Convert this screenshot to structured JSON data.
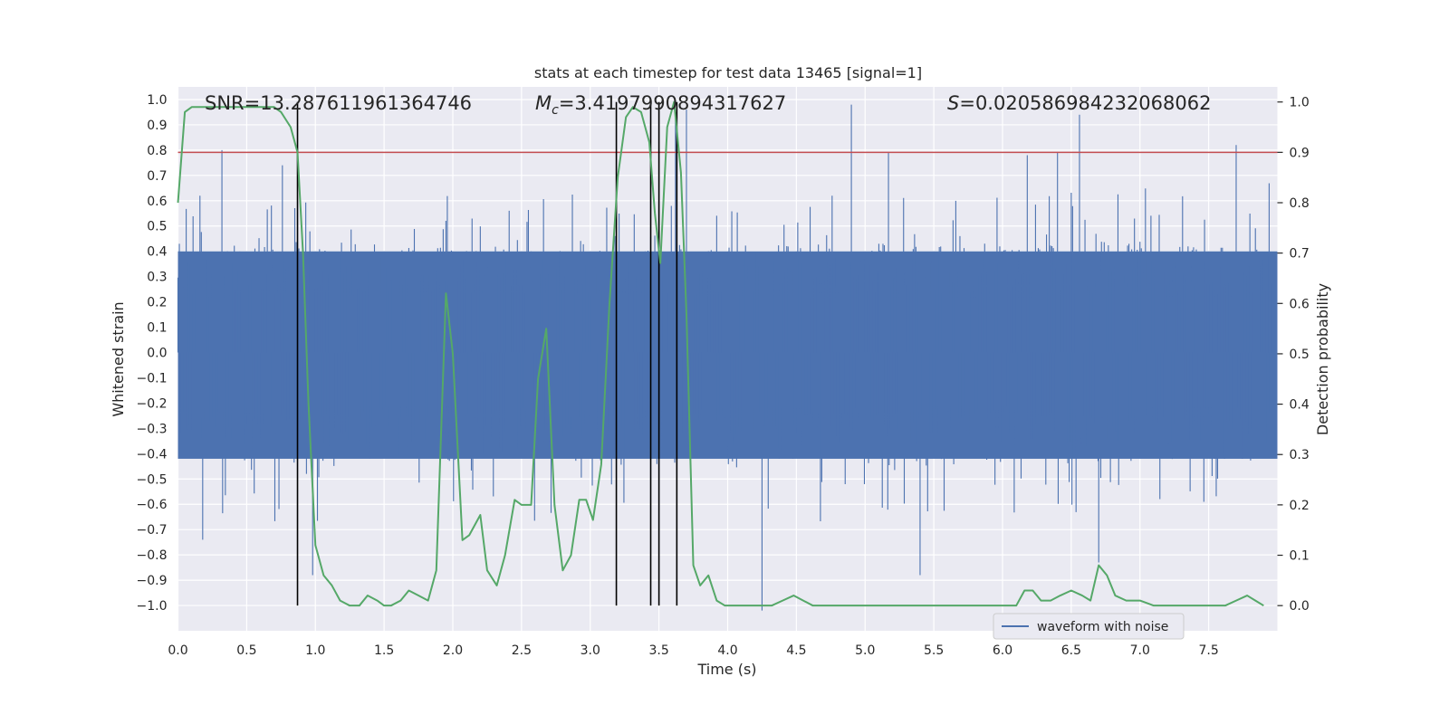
{
  "chart_data": {
    "type": "line",
    "title": "stats at each timestep for test data 13465 [signal=1]",
    "xlabel": "Time (s)",
    "ylabel_left": "Whitened strain",
    "ylabel_right": "Detection probability",
    "xlim": [
      0.0,
      8.0
    ],
    "ylim_left": [
      -1.1,
      1.05
    ],
    "ylim_right": [
      -0.05,
      1.03
    ],
    "xticks": [
      "0.0",
      "0.5",
      "1.0",
      "1.5",
      "2.0",
      "2.5",
      "3.0",
      "3.5",
      "4.0",
      "4.5",
      "5.0",
      "5.5",
      "6.0",
      "6.5",
      "7.0",
      "7.5"
    ],
    "yticks_left": [
      "1.0",
      "0.9",
      "0.8",
      "0.7",
      "0.6",
      "0.5",
      "0.4",
      "0.3",
      "0.2",
      "0.1",
      "0.0",
      "-0.1",
      "-0.2",
      "-0.3",
      "-0.4",
      "-0.5",
      "-0.6",
      "-0.7",
      "-0.8",
      "-0.9",
      "-1.0"
    ],
    "yticks_right": [
      "1.0",
      "0.9",
      "0.8",
      "0.7",
      "0.6",
      "0.5",
      "0.4",
      "0.3",
      "0.2",
      "0.1",
      "0.0"
    ],
    "annotations": {
      "snr": "SNR=13.287611961364746",
      "mc_symbol": "M",
      "mc_sub": "c",
      "mc_value": "=3.4197990894317627",
      "s_symbol": "S",
      "s_value": "=0.020586984232068062"
    },
    "threshold": {
      "detection_probability": 0.9,
      "color": "#c44e52"
    },
    "vertical_markers": [
      0.87,
      3.19,
      3.44,
      3.5,
      3.63
    ],
    "waveform": {
      "name": "waveform with noise",
      "color": "#4c72b0",
      "n_samples": 1600,
      "approx_noise_envelope": [
        -0.45,
        0.45
      ],
      "peaks_pos": [
        [
          0.16,
          0.62
        ],
        [
          0.32,
          0.8
        ],
        [
          0.76,
          0.74
        ],
        [
          3.62,
          0.95
        ],
        [
          3.7,
          0.96
        ],
        [
          4.9,
          0.98
        ],
        [
          5.17,
          0.79
        ],
        [
          6.18,
          0.78
        ],
        [
          6.4,
          0.79
        ],
        [
          6.56,
          0.94
        ],
        [
          7.7,
          0.82
        ]
      ],
      "peaks_neg": [
        [
          0.18,
          -0.74
        ],
        [
          0.98,
          -0.88
        ],
        [
          4.25,
          -1.02
        ],
        [
          5.4,
          -0.88
        ],
        [
          6.7,
          -0.83
        ]
      ]
    },
    "probability": {
      "color": "#55a868",
      "x": [
        0.0,
        0.05,
        0.1,
        0.15,
        0.2,
        0.3,
        0.4,
        0.5,
        0.6,
        0.7,
        0.75,
        0.82,
        0.87,
        0.91,
        0.95,
        1.0,
        1.06,
        1.12,
        1.18,
        1.25,
        1.32,
        1.38,
        1.45,
        1.5,
        1.55,
        1.62,
        1.68,
        1.75,
        1.82,
        1.88,
        1.95,
        2.0,
        2.07,
        2.12,
        2.2,
        2.25,
        2.32,
        2.38,
        2.45,
        2.5,
        2.57,
        2.62,
        2.68,
        2.74,
        2.8,
        2.86,
        2.92,
        2.97,
        3.02,
        3.08,
        3.14,
        3.2,
        3.26,
        3.31,
        3.37,
        3.43,
        3.47,
        3.51,
        3.56,
        3.61,
        3.66,
        3.7,
        3.75,
        3.8,
        3.86,
        3.92,
        3.98,
        4.05,
        4.12,
        4.18,
        4.25,
        4.32,
        4.4,
        4.48,
        4.55,
        4.62,
        4.7,
        4.8,
        4.9,
        5.0,
        5.15,
        5.3,
        5.45,
        5.6,
        5.75,
        5.9,
        6.0,
        6.1,
        6.16,
        6.22,
        6.28,
        6.35,
        6.42,
        6.5,
        6.58,
        6.64,
        6.7,
        6.76,
        6.82,
        6.9,
        7.0,
        7.1,
        7.2,
        7.35,
        7.5,
        7.62,
        7.7,
        7.78,
        7.84,
        7.9
      ],
      "y": [
        0.8,
        0.98,
        0.99,
        0.99,
        0.99,
        0.99,
        0.99,
        0.99,
        0.99,
        0.99,
        0.98,
        0.95,
        0.9,
        0.7,
        0.4,
        0.12,
        0.06,
        0.04,
        0.01,
        0.0,
        0.0,
        0.02,
        0.01,
        0.0,
        0.0,
        0.01,
        0.03,
        0.02,
        0.01,
        0.07,
        0.62,
        0.5,
        0.13,
        0.14,
        0.18,
        0.07,
        0.04,
        0.1,
        0.21,
        0.2,
        0.2,
        0.45,
        0.55,
        0.2,
        0.07,
        0.1,
        0.21,
        0.21,
        0.17,
        0.28,
        0.6,
        0.85,
        0.97,
        0.99,
        0.98,
        0.92,
        0.78,
        0.68,
        0.95,
        1.0,
        0.86,
        0.58,
        0.08,
        0.04,
        0.06,
        0.01,
        0.0,
        0.0,
        0.0,
        0.0,
        0.0,
        0.0,
        0.01,
        0.02,
        0.01,
        0.0,
        0.0,
        0.0,
        0.0,
        0.0,
        0.0,
        0.0,
        0.0,
        0.0,
        0.0,
        0.0,
        0.0,
        0.0,
        0.03,
        0.03,
        0.01,
        0.01,
        0.02,
        0.03,
        0.02,
        0.01,
        0.08,
        0.06,
        0.02,
        0.01,
        0.01,
        0.0,
        0.0,
        0.0,
        0.0,
        0.0,
        0.01,
        0.02,
        0.01,
        0.0
      ]
    },
    "legend": {
      "placement": "lower-center-right",
      "label": "waveform with noise"
    },
    "grid": true
  }
}
